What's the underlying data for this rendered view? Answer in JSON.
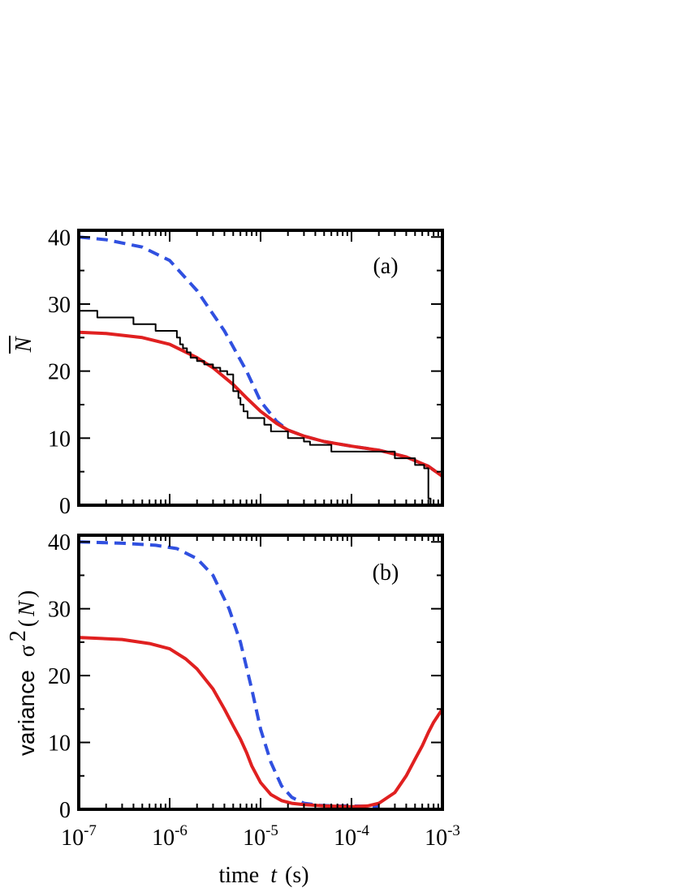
{
  "chart_data": [
    {
      "type": "line",
      "panel_label": "(a)",
      "xscale": "log",
      "xlim": [
        1e-07,
        0.001
      ],
      "ylim": [
        0,
        41
      ],
      "x_ticks": [
        {
          "base": "10",
          "exp": "-7"
        },
        {
          "base": "10",
          "exp": "-6"
        },
        {
          "base": "10",
          "exp": "-5"
        },
        {
          "base": "10",
          "exp": "-4"
        },
        {
          "base": "10",
          "exp": "-3"
        }
      ],
      "y_ticks": [
        "0",
        "10",
        "20",
        "30",
        "40"
      ],
      "ylabel": "N",
      "series": [
        {
          "style": "dashed",
          "color": "#3050e0",
          "x": [
            1e-07,
            2e-07,
            5e-07,
            1e-06,
            2e-06,
            4e-06,
            7e-06,
            1e-05,
            1.5e-05,
            2e-05,
            3e-05,
            5e-05,
            0.0001,
            0.0002,
            0.0004,
            0.0007,
            0.001
          ],
          "y": [
            40,
            39.6,
            38.5,
            36.5,
            32,
            26,
            20,
            15.5,
            12.5,
            11.2,
            10.3,
            9.5,
            8.8,
            8.2,
            7.2,
            5.8,
            4.3
          ]
        },
        {
          "style": "solid",
          "color": "#e02020",
          "x": [
            1e-07,
            2e-07,
            5e-07,
            1e-06,
            2e-06,
            3e-06,
            5e-06,
            7e-06,
            1e-05,
            1.5e-05,
            2e-05,
            3e-05,
            5e-05,
            0.0001,
            0.0002,
            0.0004,
            0.0007,
            0.001
          ],
          "y": [
            25.8,
            25.6,
            25,
            24,
            22,
            20.5,
            18,
            16,
            14,
            12.2,
            11.2,
            10.3,
            9.5,
            8.8,
            8.2,
            7.2,
            5.8,
            4.3
          ]
        },
        {
          "style": "step",
          "color": "#000000",
          "x": [
            1e-07,
            1.6e-07,
            4e-07,
            7e-07,
            1.2e-06,
            1.3e-06,
            1.4e-06,
            1.55e-06,
            1.7e-06,
            2e-06,
            2.4e-06,
            3e-06,
            3.6e-06,
            4.3e-06,
            5e-06,
            5.7e-06,
            6e-06,
            6.5e-06,
            7.2e-06,
            8e-06,
            1.1e-05,
            1.3e-05,
            2e-05,
            3e-05,
            3.5e-05,
            4e-05,
            6e-05,
            0.00015,
            0.0003,
            0.00036,
            0.0005,
            0.00063,
            0.0007,
            0.00074
          ],
          "y": [
            29,
            28,
            27,
            26,
            25,
            24,
            23.4,
            22.8,
            22,
            21.5,
            21,
            20.5,
            20,
            19.5,
            17,
            16,
            15,
            14,
            13,
            13,
            12,
            11,
            10,
            9.5,
            9,
            9,
            8,
            8,
            7,
            7,
            6,
            5.5,
            1,
            0
          ]
        }
      ]
    },
    {
      "type": "line",
      "panel_label": "(b)",
      "xscale": "log",
      "xlim": [
        1e-07,
        0.001
      ],
      "ylim": [
        0,
        41
      ],
      "x_ticks": [
        {
          "base": "10",
          "exp": "-7"
        },
        {
          "base": "10",
          "exp": "-6"
        },
        {
          "base": "10",
          "exp": "-5"
        },
        {
          "base": "10",
          "exp": "-4"
        },
        {
          "base": "10",
          "exp": "-3"
        }
      ],
      "y_ticks": [
        "0",
        "10",
        "20",
        "30",
        "40"
      ],
      "ylabel_word": "variance",
      "ylabel_sigma": "σ",
      "ylabel_power": "2",
      "ylabel_open": "(",
      "ylabel_var": "N",
      "ylabel_close": ")",
      "xlabel_word": "time",
      "xlabel_var": "t",
      "xlabel_unit": "(s)",
      "series": [
        {
          "style": "dashed",
          "color": "#3050e0",
          "x": [
            1e-07,
            3e-07,
            7e-07,
            1.2e-06,
            2e-06,
            3e-06,
            4.5e-06,
            6e-06,
            8e-06,
            1e-05,
            1.3e-05,
            1.7e-05,
            2.2e-05,
            3e-05,
            4.5e-05,
            7e-05,
            0.0001,
            0.00015,
            0.0002
          ],
          "y": [
            40,
            39.8,
            39.5,
            39,
            37.5,
            35,
            30,
            25,
            18,
            12,
            7,
            3.5,
            1.8,
            0.9,
            0.6,
            0.5,
            0.5,
            0.45,
            0.5
          ]
        },
        {
          "style": "solid",
          "color": "#e02020",
          "x": [
            1e-07,
            3e-07,
            6e-07,
            1e-06,
            1.5e-06,
            2e-06,
            3e-06,
            4e-06,
            5e-06,
            6e-06,
            7e-06,
            8e-06,
            1e-05,
            1.3e-05,
            1.7e-05,
            2.2e-05,
            3e-05,
            5e-05,
            0.0001,
            0.00015,
            0.0002,
            0.0003,
            0.0004,
            0.0005,
            0.0006,
            0.0007,
            0.0008,
            0.001
          ],
          "y": [
            25.7,
            25.4,
            24.8,
            24,
            22.5,
            21,
            18,
            15,
            12.5,
            10.5,
            8.5,
            6.5,
            4,
            2.2,
            1.3,
            0.9,
            0.7,
            0.5,
            0.4,
            0.5,
            0.9,
            2.5,
            5,
            7.5,
            9.5,
            11.5,
            13,
            15
          ]
        }
      ]
    }
  ]
}
